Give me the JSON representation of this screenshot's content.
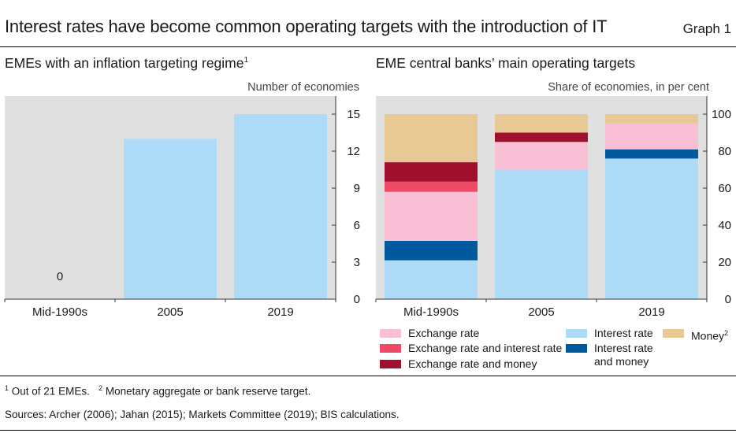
{
  "header": {
    "title": "Interest rates have become common operating targets with the introduction of IT",
    "graph_label": "Graph 1"
  },
  "colors": {
    "plot_bg": "#e0e0e0",
    "interest_rate": "#aedcf8",
    "interest_rate_and_money": "#00599d",
    "exchange_rate": "#f9bfd4",
    "exchange_rate_and_interest_rate": "#f04a66",
    "exchange_rate_and_money": "#a0102e",
    "money": "#e8c894"
  },
  "chart_data": [
    {
      "type": "bar",
      "title": "EMEs with an inflation targeting regime",
      "title_footnote": "1",
      "unit_label": "Number of economies",
      "categories": [
        "Mid-1990s",
        "2005",
        "2019"
      ],
      "values": [
        0,
        13,
        15
      ],
      "value_labels": [
        "0",
        "",
        ""
      ],
      "ylim": [
        0,
        15
      ],
      "yticks": [
        0,
        3,
        6,
        9,
        12,
        15
      ],
      "y_axis_side": "right",
      "grid": false
    },
    {
      "type": "bar",
      "stacked": true,
      "title": "EME central banks’ main operating targets",
      "unit_label": "Share of economies, in per cent",
      "categories": [
        "Mid-1990s",
        "2005",
        "2019"
      ],
      "ylim": [
        0,
        100
      ],
      "yticks": [
        0,
        20,
        40,
        60,
        80,
        100
      ],
      "y_axis_side": "right",
      "grid": false,
      "legend_placement": "bottom",
      "series": [
        {
          "key": "interest_rate",
          "name": "Interest rate",
          "values": [
            21,
            70,
            76
          ]
        },
        {
          "key": "interest_rate_and_money",
          "name": "Interest rate and money",
          "values": [
            10.5,
            0,
            5
          ]
        },
        {
          "key": "exchange_rate",
          "name": "Exchange rate",
          "values": [
            26.5,
            15,
            14
          ]
        },
        {
          "key": "exchange_rate_and_interest_rate",
          "name": "Exchange rate and interest rate",
          "values": [
            5.5,
            0,
            0
          ]
        },
        {
          "key": "exchange_rate_and_money",
          "name": "Exchange rate and money",
          "values": [
            10.5,
            5,
            0
          ]
        },
        {
          "key": "money",
          "name": "Money",
          "name_footnote": "2",
          "values": [
            26,
            10,
            5
          ]
        }
      ]
    }
  ],
  "footnotes": {
    "n1_marker": "1",
    "n1_text": "Out of 21 EMEs.",
    "n2_marker": "2",
    "n2_text": "Monetary aggregate or bank reserve target."
  },
  "sources": "Sources: Archer (2006); Jahan (2015); Markets Committee (2019); BIS calculations."
}
